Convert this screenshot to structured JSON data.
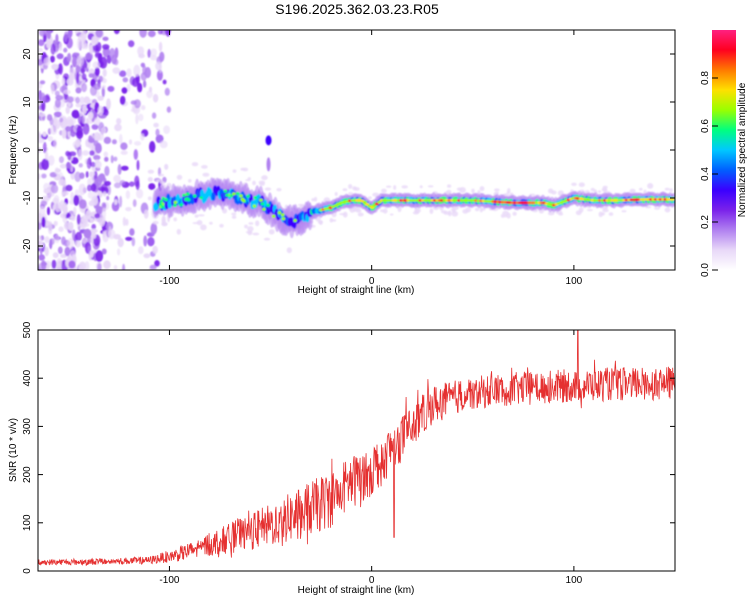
{
  "title": "S196.2025.362.03.23.R05",
  "colors": {
    "snr_line": "#e53030",
    "colormap": [
      "#ffffff",
      "#e8d8f8",
      "#b080f0",
      "#7a22ea",
      "#3a00ff",
      "#0060ff",
      "#00c8ff",
      "#00ff80",
      "#9aff00",
      "#ffe000",
      "#ff7a00",
      "#ff0020",
      "#ff2080"
    ]
  },
  "chart_data": [
    {
      "type": "heatmap",
      "xlabel": "Height of straight line (km)",
      "ylabel": "Frequency (Hz)",
      "xlim": [
        -165,
        150
      ],
      "ylim": [
        -25,
        25
      ],
      "xticks": [
        -100,
        0,
        100
      ],
      "xtick_labels": [
        "-100",
        "0",
        "100"
      ],
      "yticks": [
        -20,
        -10,
        0,
        10,
        20
      ],
      "ytick_labels": [
        "-20",
        "-10",
        "0",
        "10",
        "20"
      ],
      "colorbar": {
        "label": "Normalized spectral amplitude",
        "range": [
          0,
          1
        ],
        "ticks": [
          0.0,
          0.2,
          0.4,
          0.6,
          0.8
        ],
        "tick_labels": [
          "0.0",
          "0.2",
          "0.4",
          "0.6",
          "0.8"
        ]
      },
      "ridge": {
        "description_points_x": [
          -105,
          -95,
          -85,
          -75,
          -65,
          -55,
          -48,
          -42,
          -36,
          -30,
          -25,
          -20,
          -15,
          -10,
          -5,
          0,
          5,
          15,
          30,
          50,
          70,
          85,
          90,
          100,
          110,
          120,
          135,
          150
        ],
        "frequency_hz": [
          -11,
          -10.5,
          -9.5,
          -9,
          -10,
          -11,
          -13,
          -15,
          -14.5,
          -13,
          -12.5,
          -12,
          -11,
          -10.5,
          -10.5,
          -12,
          -10.5,
          -10.5,
          -10.5,
          -10.5,
          -11,
          -11,
          -11.5,
          -10,
          -10.5,
          -10.5,
          -10.3,
          -10.3
        ]
      },
      "noise_region_x": [
        -165,
        -110
      ],
      "spike": {
        "x": -51,
        "frequency_hz": 2
      }
    },
    {
      "type": "line",
      "xlabel": "Height of straight line (km)",
      "ylabel": "SNR (10 * v/v)",
      "xlim": [
        -165,
        150
      ],
      "ylim": [
        0,
        500
      ],
      "xticks": [
        -100,
        0,
        100
      ],
      "xtick_labels": [
        "-100",
        "0",
        "100"
      ],
      "yticks": [
        0,
        100,
        200,
        300,
        400,
        500
      ],
      "ytick_labels": [
        "0",
        "100",
        "200",
        "300",
        "400",
        "500"
      ],
      "series": [
        {
          "name": "SNR",
          "trend_x": [
            -165,
            -130,
            -110,
            -95,
            -80,
            -65,
            -50,
            -35,
            -20,
            -10,
            0,
            10,
            20,
            30,
            45,
            60,
            80,
            100,
            120,
            150
          ],
          "trend_y": [
            18,
            20,
            22,
            35,
            55,
            75,
            95,
            120,
            150,
            185,
            210,
            255,
            300,
            345,
            365,
            375,
            380,
            385,
            388,
            390
          ],
          "spread_y": [
            6,
            7,
            8,
            15,
            25,
            35,
            45,
            55,
            60,
            55,
            55,
            50,
            45,
            40,
            35,
            35,
            35,
            35,
            35,
            35
          ],
          "peak": {
            "x": 102,
            "y": 500
          }
        }
      ]
    }
  ]
}
